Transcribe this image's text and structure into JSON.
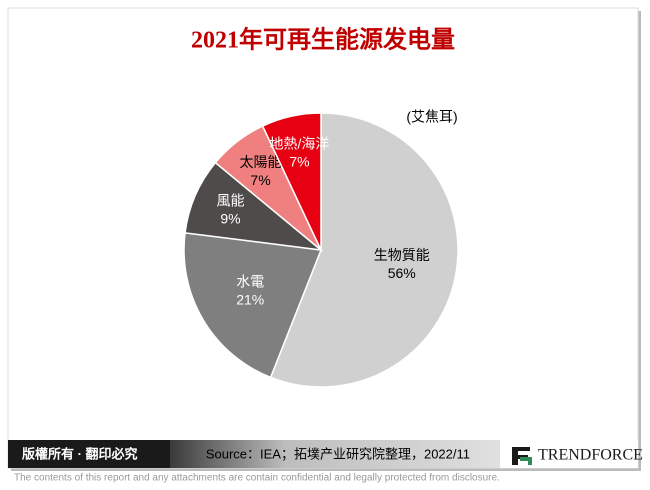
{
  "chart_data": {
    "type": "pie",
    "title": "2021年可再生能源发电量",
    "unit": "(艾焦耳)",
    "categories": [
      "生物質能",
      "水電",
      "風能",
      "太陽能",
      "地熱/海洋"
    ],
    "values": [
      56,
      21,
      9,
      7,
      7
    ],
    "value_labels": [
      "56%",
      "21%",
      "9%",
      "7%",
      "7%"
    ],
    "colors": [
      "#d0d0d0",
      "#7f7f7f",
      "#4f4b4b",
      "#f08080",
      "#e60012"
    ]
  },
  "footer": {
    "rights": "版權所有 · 翻印必究",
    "source": "Source：IEA；拓墣产业研究院整理，2022/11",
    "brand": "TRENDFORCE"
  },
  "disclaimer": "The contents of this report and any attachments are contain confidential and legally protected from disclosure."
}
